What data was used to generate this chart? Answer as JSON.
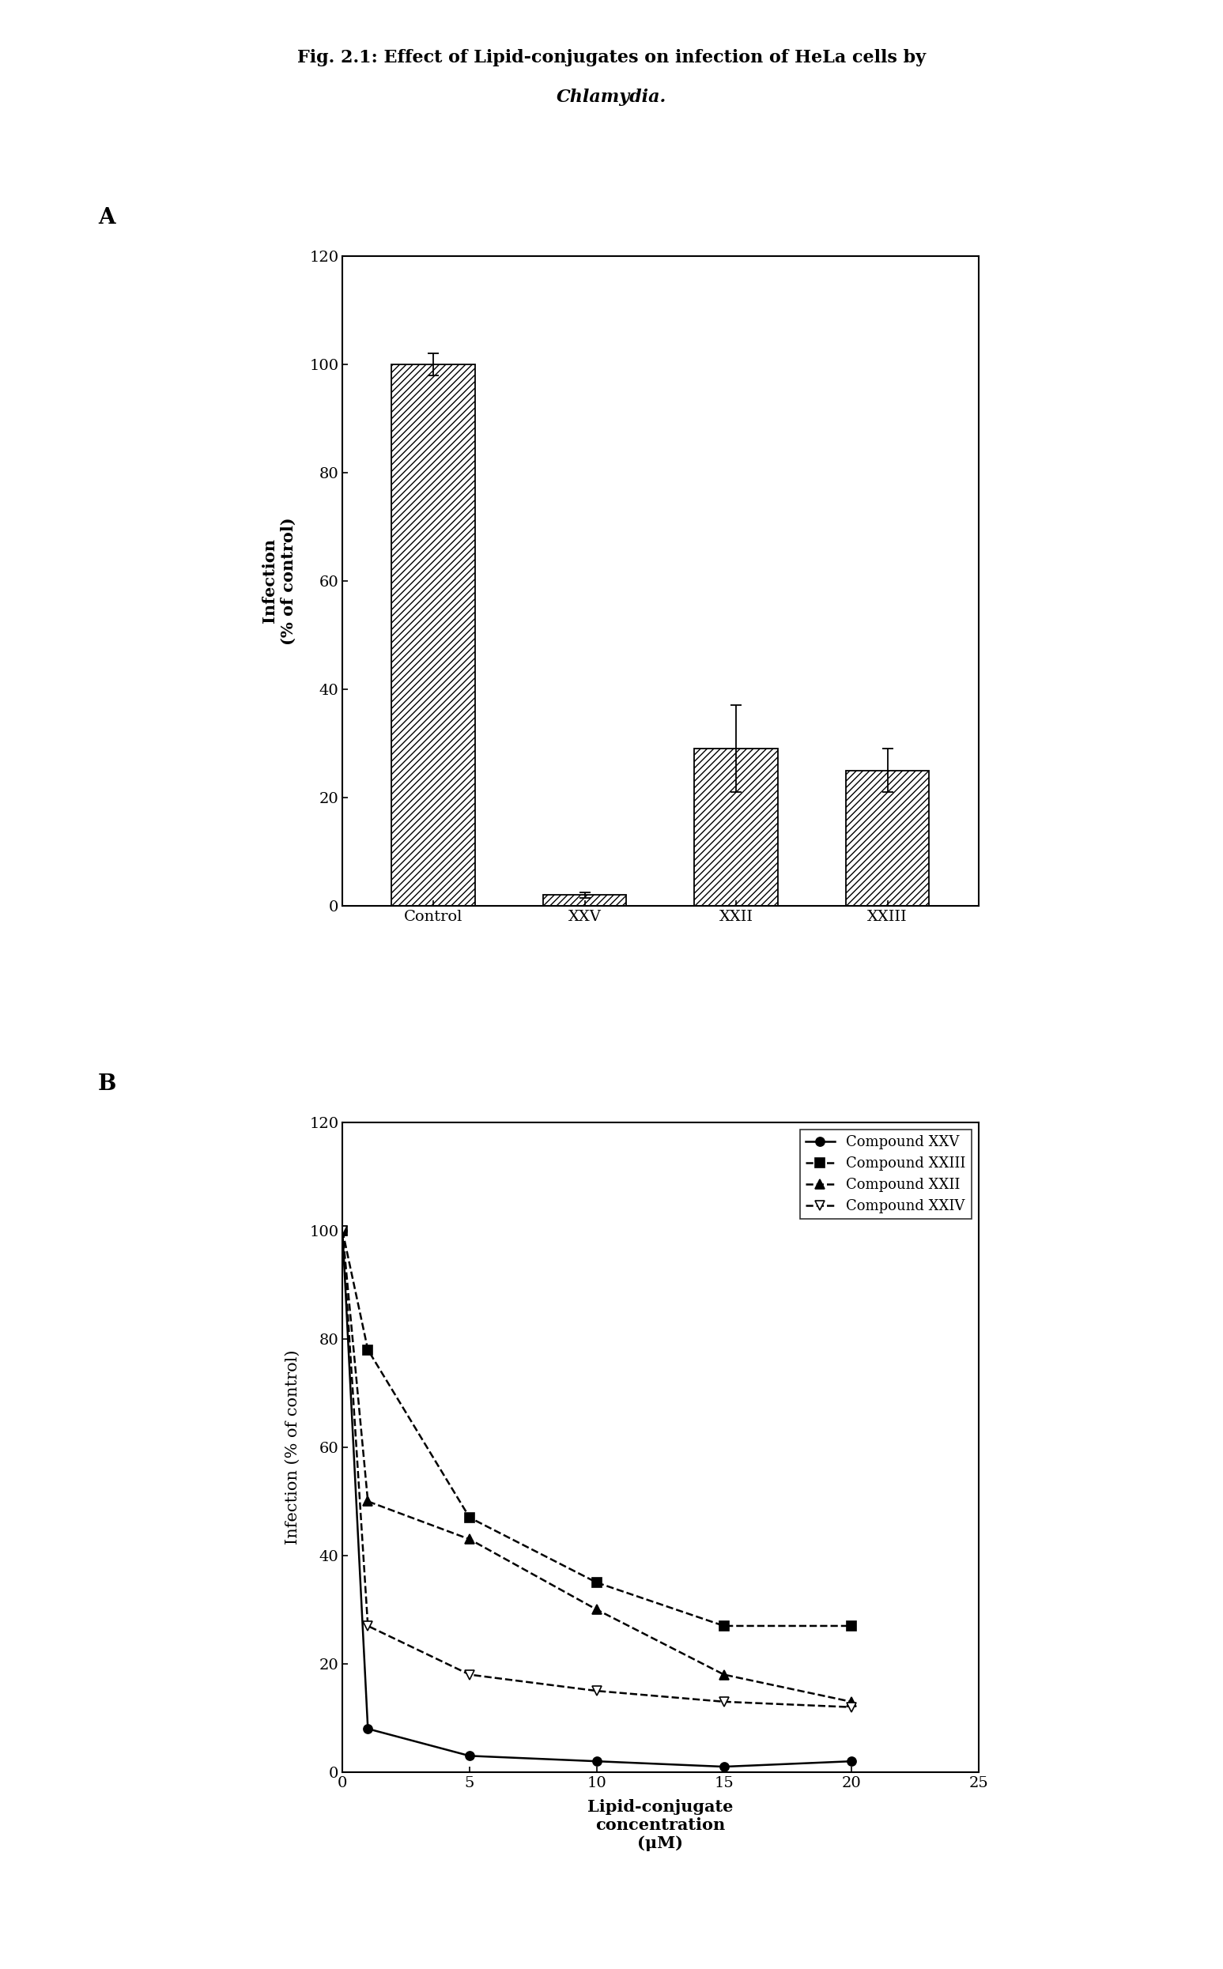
{
  "title_line1": "Fig. 2.1: Effect of Lipid-conjugates on infection of HeLa cells by",
  "title_line2": "Chlamydia.",
  "panel_a_label": "A",
  "panel_b_label": "B",
  "bar_categories": [
    "Control",
    "XXV",
    "XXII",
    "XXIII"
  ],
  "bar_values": [
    100,
    2,
    29,
    25
  ],
  "bar_errors": [
    2,
    0.5,
    8,
    4
  ],
  "bar_ylim": [
    0,
    120
  ],
  "bar_yticks": [
    0,
    20,
    40,
    60,
    80,
    100,
    120
  ],
  "bar_ylabel": "Infection\n(% of control)",
  "hatch_pattern": "////",
  "line_x": [
    0,
    1,
    5,
    10,
    15,
    20
  ],
  "line_XXV": [
    100,
    8,
    3,
    2,
    1,
    2
  ],
  "line_XXIII": [
    100,
    78,
    47,
    35,
    27,
    27
  ],
  "line_XXII": [
    100,
    50,
    43,
    30,
    18,
    13
  ],
  "line_XXIV": [
    100,
    27,
    18,
    15,
    13,
    12
  ],
  "line_ylim": [
    0,
    120
  ],
  "line_yticks": [
    0,
    20,
    40,
    60,
    80,
    100,
    120
  ],
  "line_xlim": [
    0,
    25
  ],
  "line_xticks": [
    0,
    5,
    10,
    15,
    20,
    25
  ],
  "line_ylabel": "Infection (% of control)",
  "line_xlabel_line1": "Lipid-conjugate",
  "line_xlabel_line2": "concentration",
  "line_xlabel_line3": "(μM)",
  "legend_labels": [
    "Compound XXV",
    "Compound XXIII",
    "Compound XXII",
    "Compound XXIV"
  ],
  "background_color": "#ffffff",
  "title_fontsize": 16,
  "axis_label_fontsize": 13,
  "tick_fontsize": 12,
  "legend_fontsize": 11,
  "panel_label_fontsize": 20
}
